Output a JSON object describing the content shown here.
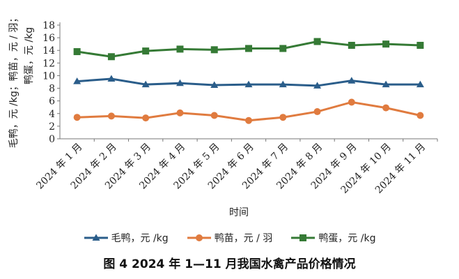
{
  "chart_data": {
    "type": "line",
    "categories": [
      "2024 年 1 月",
      "2024 年 2 月",
      "2024 年 3 月",
      "2024 年 4 月",
      "2024 年 5 月",
      "2024 年 6 月",
      "2024 年 7 月",
      "2024 年 8 月",
      "2024 年 9 月",
      "2024 年 10 月",
      "2024 年 11 月"
    ],
    "series": [
      {
        "name": "毛鸭，元 /kg",
        "color": "#2a5d8a",
        "marker": "triangle",
        "values": [
          9.1,
          9.5,
          8.6,
          8.8,
          8.5,
          8.6,
          8.6,
          8.4,
          9.2,
          8.6,
          8.6
        ]
      },
      {
        "name": "鸭苗，元 / 羽",
        "color": "#e07b3f",
        "marker": "circle",
        "values": [
          3.4,
          3.6,
          3.3,
          4.1,
          3.7,
          2.9,
          3.4,
          4.3,
          5.8,
          4.9,
          3.7
        ]
      },
      {
        "name": "鸭蛋，元 /kg",
        "color": "#357a35",
        "marker": "square",
        "values": [
          13.8,
          13.0,
          13.9,
          14.2,
          14.1,
          14.3,
          14.3,
          15.4,
          14.8,
          15.0,
          14.8
        ]
      }
    ],
    "ylabel_line1": "毛鸭，元 /kg；鸭苗，元 / 羽；",
    "ylabel_line2": "鸭蛋，元 /kg",
    "xlabel": "时间",
    "ylim": [
      0,
      18
    ],
    "yticks": [
      0,
      2,
      4,
      6,
      8,
      10,
      12,
      14,
      16,
      18
    ],
    "grid": false,
    "legend_position": "bottom"
  },
  "caption": "图 4 2024 年 1—11 月我国水禽产品价格情况"
}
